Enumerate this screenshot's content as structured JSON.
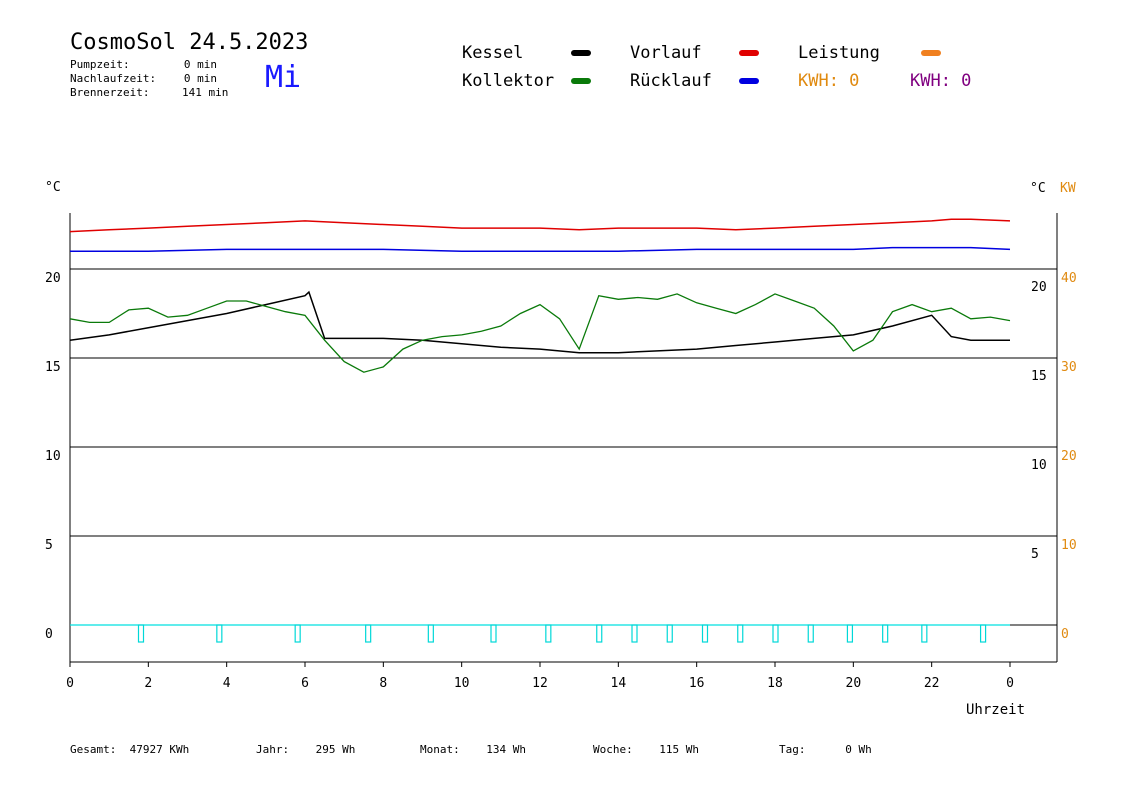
{
  "header": {
    "title": "CosmoSol 24.5.2023",
    "weekday": "Mi",
    "stats": [
      {
        "label": "Pumpzeit:",
        "value": "0 min"
      },
      {
        "label": "Nachlaufzeit:",
        "value": "0 min"
      },
      {
        "label": "Brennerzeit:",
        "value": "141 min"
      }
    ]
  },
  "legend": {
    "items": [
      {
        "label": "Kessel",
        "color": "#000000"
      },
      {
        "label": "Vorlauf",
        "color": "#e00000"
      },
      {
        "label": "Leistung",
        "color": "#f08020"
      },
      {
        "label": "Kollektor",
        "color": "#0a7a0a"
      },
      {
        "label": "Rücklauf",
        "color": "#0000e0"
      }
    ],
    "kwh_orange": "KWH: 0",
    "kwh_purple": "KWH: 0",
    "kwh_orange_color": "#e08a10",
    "kwh_purple_color": "#800080"
  },
  "axes": {
    "left_unit": "°C",
    "right_unit": "°C",
    "right_unit2": "KW",
    "x_label": "Uhrzeit"
  },
  "footer": [
    {
      "label": "Gesamt:",
      "value": "47927 KWh"
    },
    {
      "label": "Jahr:",
      "value": "295 Wh"
    },
    {
      "label": "Monat:",
      "value": "134 Wh"
    },
    {
      "label": "Woche:",
      "value": "115 Wh"
    },
    {
      "label": "Tag:",
      "value": "0 Wh"
    }
  ],
  "chart_data": {
    "type": "line",
    "xlabel": "Uhrzeit",
    "x_ticks": [
      "0",
      "2",
      "4",
      "6",
      "8",
      "10",
      "12",
      "14",
      "16",
      "18",
      "20",
      "22",
      "0"
    ],
    "y_ticks_left": [
      "0",
      "5",
      "10",
      "15",
      "20"
    ],
    "y_ticks_right": [
      "5",
      "10",
      "15",
      "20"
    ],
    "y_ticks_kw": [
      "0",
      "10",
      "20",
      "30",
      "40"
    ],
    "ylim": [
      -2,
      24
    ],
    "xlim": [
      0,
      24
    ],
    "series": [
      {
        "name": "Kessel",
        "color": "#000000",
        "x": [
          0,
          1,
          2,
          3,
          4,
          5,
          6,
          6.1,
          6.5,
          7,
          8,
          9,
          10,
          11,
          12,
          13,
          14,
          15,
          16,
          17,
          18,
          19,
          20,
          21,
          22,
          22.5,
          23,
          24
        ],
        "y": [
          16.0,
          16.3,
          16.7,
          17.1,
          17.5,
          18.0,
          18.5,
          18.7,
          16.1,
          16.1,
          16.1,
          16.0,
          15.8,
          15.6,
          15.5,
          15.3,
          15.3,
          15.4,
          15.5,
          15.7,
          15.9,
          16.1,
          16.3,
          16.8,
          17.4,
          16.2,
          16.0,
          16.0
        ]
      },
      {
        "name": "Kollektor",
        "color": "#0a7a0a",
        "x": [
          0,
          0.5,
          1,
          1.5,
          2,
          2.5,
          3,
          3.5,
          4,
          4.5,
          5,
          5.5,
          6,
          6.5,
          7,
          7.5,
          8,
          8.5,
          9,
          9.5,
          10,
          10.5,
          11,
          11.5,
          12,
          12.5,
          13,
          13.5,
          14,
          14.5,
          15,
          15.5,
          16,
          16.5,
          17,
          17.5,
          18,
          18.5,
          19,
          19.5,
          20,
          20.5,
          21,
          21.5,
          22,
          22.5,
          23,
          23.5,
          24
        ],
        "y": [
          17.2,
          17.0,
          17.0,
          17.7,
          17.8,
          17.3,
          17.4,
          17.8,
          18.2,
          18.2,
          17.9,
          17.6,
          17.4,
          16.0,
          14.8,
          14.2,
          14.5,
          15.5,
          16.0,
          16.2,
          16.3,
          16.5,
          16.8,
          17.5,
          18.0,
          17.2,
          15.5,
          18.5,
          18.3,
          18.4,
          18.3,
          18.6,
          18.1,
          17.8,
          17.5,
          18.0,
          18.6,
          18.2,
          17.8,
          16.8,
          15.4,
          16.0,
          17.6,
          18.0,
          17.6,
          17.8,
          17.2,
          17.3,
          17.1
        ]
      },
      {
        "name": "Vorlauf",
        "color": "#e00000",
        "x": [
          0,
          1,
          2,
          3,
          4,
          5,
          6,
          7,
          8,
          9,
          10,
          11,
          12,
          13,
          14,
          15,
          16,
          17,
          18,
          19,
          20,
          21,
          22,
          22.5,
          23,
          24
        ],
        "y": [
          22.1,
          22.2,
          22.3,
          22.4,
          22.5,
          22.6,
          22.7,
          22.6,
          22.5,
          22.4,
          22.3,
          22.3,
          22.3,
          22.2,
          22.3,
          22.3,
          22.3,
          22.2,
          22.3,
          22.4,
          22.5,
          22.6,
          22.7,
          22.8,
          22.8,
          22.7
        ]
      },
      {
        "name": "Rücklauf",
        "color": "#0000e0",
        "x": [
          0,
          2,
          4,
          6,
          8,
          10,
          12,
          14,
          16,
          18,
          20,
          21,
          22,
          23,
          24
        ],
        "y": [
          21.0,
          21.0,
          21.1,
          21.1,
          21.1,
          21.0,
          21.0,
          21.0,
          21.1,
          21.1,
          21.1,
          21.2,
          21.2,
          21.2,
          21.1
        ]
      },
      {
        "name": "Leistung",
        "color": "#f08020",
        "x": [
          0,
          24
        ],
        "y": [
          0,
          0
        ]
      }
    ],
    "pump_pulses_x": [
      1.8,
      3.8,
      5.8,
      7.6,
      9.2,
      10.8,
      12.2,
      13.5,
      14.4,
      15.3,
      16.2,
      17.1,
      18.0,
      18.9,
      19.9,
      20.8,
      21.8,
      23.3
    ]
  }
}
